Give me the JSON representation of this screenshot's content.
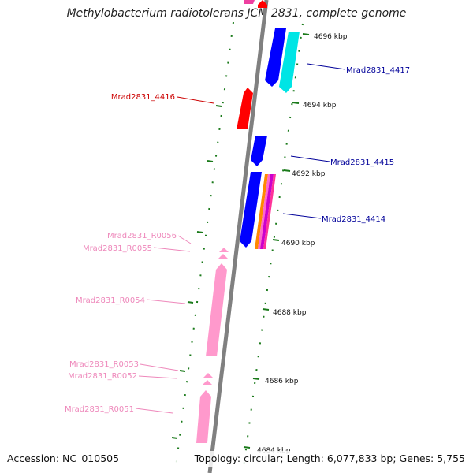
{
  "title": "Methylobacterium radiotolerans JCM 2831, complete genome",
  "footer": {
    "accession": "Accession: NC_010505",
    "summary": "Topology: circular; Length: 6,077,833 bp; Genes: 5,755"
  },
  "colors": {
    "backbone": "#808080",
    "tick": "#1a7a1a",
    "forward_cds": "#ff0000",
    "reverse_cds": "#0000ff",
    "cyan_cds": "#00e5e5",
    "rna": "#ff99cc",
    "red_label": "#cc0000",
    "blue_label": "#000099",
    "pink_label": "#ee88bb"
  },
  "scale_labels": [
    "4696 kbp",
    "4694 kbp",
    "4692 kbp",
    "4690 kbp",
    "4688 kbp",
    "4686 kbp",
    "4684 kbp"
  ],
  "features": [
    {
      "id": "Mrad2831_4417",
      "color_key": "cyan_cds",
      "label_color_key": "blue_label"
    },
    {
      "id": "Mrad2831_4416",
      "color_key": "forward_cds",
      "label_color_key": "red_label"
    },
    {
      "id": "Mrad2831_4415",
      "color_key": "reverse_cds",
      "label_color_key": "blue_label"
    },
    {
      "id": "Mrad2831_4414",
      "color_key": "reverse_cds",
      "label_color_key": "blue_label"
    },
    {
      "id": "Mrad2831_R0056",
      "color_key": "rna",
      "label_color_key": "pink_label"
    },
    {
      "id": "Mrad2831_R0055",
      "color_key": "rna",
      "label_color_key": "pink_label"
    },
    {
      "id": "Mrad2831_R0054",
      "color_key": "rna",
      "label_color_key": "pink_label"
    },
    {
      "id": "Mrad2831_R0053",
      "color_key": "rna",
      "label_color_key": "pink_label"
    },
    {
      "id": "Mrad2831_R0052",
      "color_key": "rna",
      "label_color_key": "pink_label"
    },
    {
      "id": "Mrad2831_R0051",
      "color_key": "rna",
      "label_color_key": "pink_label"
    }
  ]
}
